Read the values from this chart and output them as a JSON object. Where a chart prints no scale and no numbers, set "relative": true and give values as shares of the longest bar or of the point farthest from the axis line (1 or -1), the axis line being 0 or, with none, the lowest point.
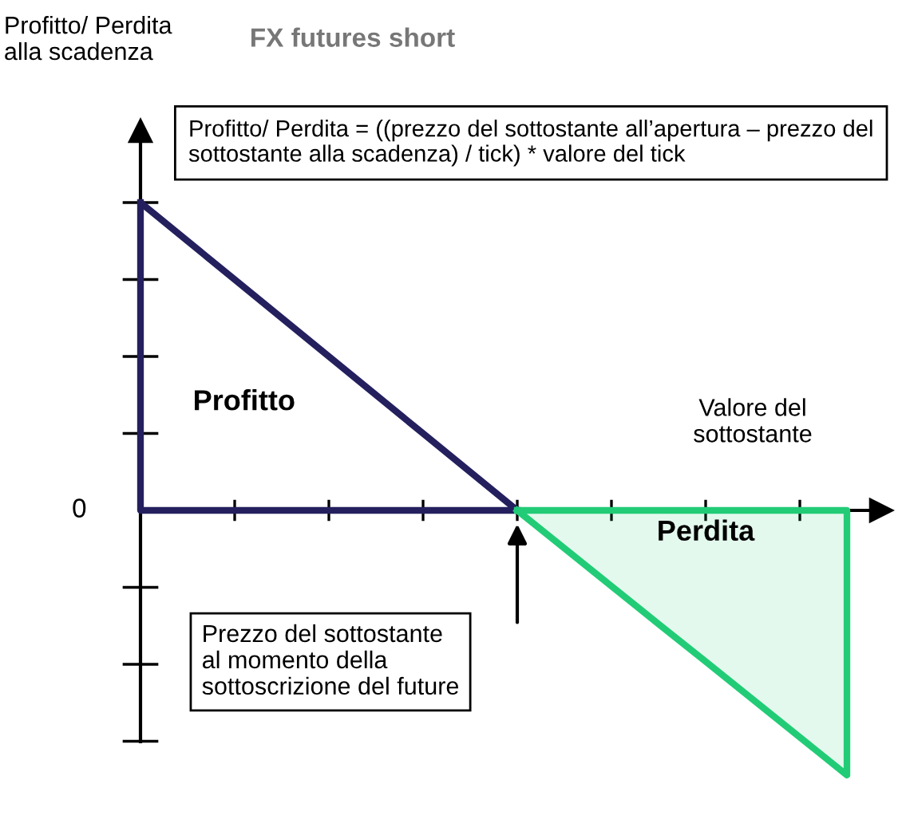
{
  "chart_data": {
    "type": "line",
    "title": "FX futures short",
    "xlabel": "Valore del\nsottostante",
    "relative": true,
    "categories": [
      null,
      null,
      null,
      null,
      null,
      null,
      null,
      null,
      null,
      null,
      null,
      null,
      null,
      null,
      null,
      null
    ],
    "series": [
      {
        "color": "#24205e",
        "values": [
          1,
          0.875,
          0.75,
          0.625,
          0.5,
          0.375,
          0.25,
          0.125,
          0,
          null,
          null,
          null,
          null,
          null,
          null,
          null
        ]
      },
      {
        "type": "area",
        "color": "#22cc77",
        "values": [
          null,
          null,
          null,
          null,
          null,
          null,
          null,
          null,
          0,
          -0.123,
          -0.246,
          -0.369,
          -0.491,
          -0.614,
          -0.737,
          -0.86
        ]
      }
    ],
    "annotations": [
      "Profitto/ Perdita\nalla scadenza",
      "0",
      "Profitto",
      "Perdita",
      "Profitto/ Perdita = ((prezzo del sottostante all’apertura – prezzo del sottostante alla scadenza) / tick) * valore del tick",
      "Prezzo del sottostante\nal momento della\nsottoscrizione del future"
    ]
  }
}
